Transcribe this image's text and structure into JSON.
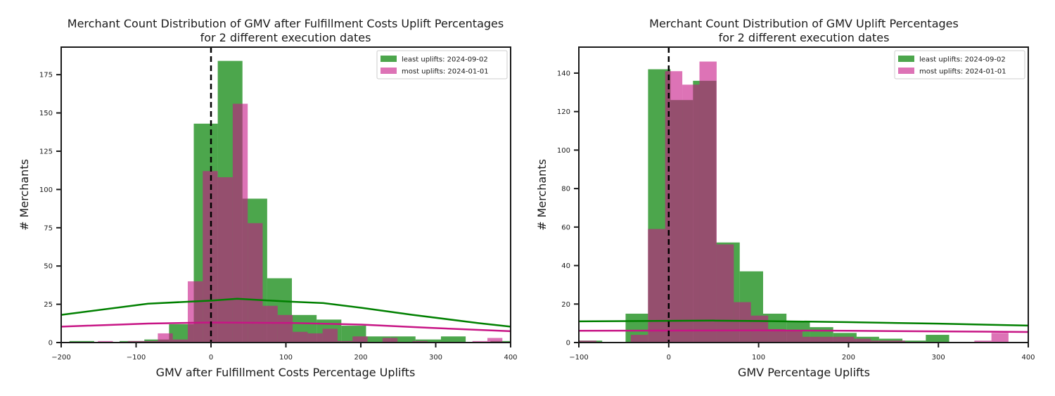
{
  "chart_data": [
    {
      "type": "histogram",
      "title": [
        "Merchant Count Distribution of GMV after Fulfillment Costs Uplift Percentages",
        "for 2 different execution dates"
      ],
      "xlabel": "GMV after Fulfillment Costs Percentage Uplifts",
      "ylabel": "# Merchants",
      "xlim": [
        -200,
        400
      ],
      "ylim": [
        0,
        193
      ],
      "xticks": [
        -200,
        -100,
        0,
        100,
        200,
        300,
        400
      ],
      "xtick_labels": [
        "−200",
        "−100",
        "0",
        "100",
        "200",
        "300",
        "400"
      ],
      "yticks": [
        0,
        25,
        50,
        75,
        100,
        125,
        150,
        175
      ],
      "ytick_labels": [
        "0",
        "25",
        "50",
        "75",
        "100",
        "125",
        "150",
        "175"
      ],
      "reference_line": {
        "x": 0,
        "style": "dashed",
        "color": "#000000"
      },
      "legend_position": "top-right",
      "series": [
        {
          "name": "least uplifts: 2024-09-02",
          "color": "#008000",
          "alpha": 0.7,
          "bin_edges": [
            -189,
            -156,
            -122,
            -89,
            -56,
            -23,
            9,
            42,
            75,
            108,
            141,
            174,
            207,
            240,
            273,
            307,
            340,
            373,
            406
          ],
          "counts": [
            1,
            0,
            1,
            2,
            12,
            143,
            184,
            94,
            42,
            18,
            15,
            11,
            4,
            4,
            2,
            4,
            0,
            1
          ],
          "kde": {
            "x": [
              -200,
              -84,
              0,
              35,
              106,
              150,
              201,
              269,
              357,
              400
            ],
            "y": [
              18.1,
              25.4,
              27.4,
              28.6,
              26.7,
              25.8,
              22.7,
              18.1,
              12.7,
              10.4
            ]
          }
        },
        {
          "name": "most uplifts: 2024-01-01",
          "color": "#c71585",
          "alpha": 0.6,
          "bin_edges": [
            -151,
            -131,
            -111,
            -91,
            -71,
            -51,
            -31,
            -11,
            9,
            29,
            49,
            69,
            89,
            109,
            129,
            149,
            169,
            189,
            209,
            229,
            249,
            269,
            289,
            309,
            329,
            349,
            369,
            389
          ],
          "counts": [
            1,
            0,
            1,
            1,
            6,
            2,
            40,
            112,
            108,
            156,
            78,
            24,
            18,
            7,
            6,
            9,
            1,
            4,
            0,
            3,
            0,
            1,
            0,
            0,
            0,
            1,
            3
          ],
          "kde": {
            "x": [
              -200,
              -84,
              0,
              106,
              201,
              288,
              400
            ],
            "y": [
              10.4,
              12.4,
              13.1,
              12.8,
              11.7,
              9.7,
              7.4
            ]
          }
        }
      ]
    },
    {
      "type": "histogram",
      "title": [
        "Merchant Count Distribution of GMV Uplift Percentages",
        "for 2 different execution dates"
      ],
      "xlabel": "GMV Percentage Uplifts",
      "ylabel": "# Merchants",
      "xlim": [
        -100,
        400
      ],
      "ylim": [
        0,
        153.5
      ],
      "xticks": [
        -100,
        0,
        100,
        200,
        300,
        400
      ],
      "xtick_labels": [
        "−100",
        "0",
        "100",
        "200",
        "300",
        "400"
      ],
      "yticks": [
        0,
        20,
        40,
        60,
        80,
        100,
        120,
        140
      ],
      "ytick_labels": [
        "0",
        "20",
        "40",
        "60",
        "80",
        "100",
        "120",
        "140"
      ],
      "reference_line": {
        "x": 0,
        "style": "dashed",
        "color": "#000000"
      },
      "legend_position": "top-right",
      "series": [
        {
          "name": "least uplifts: 2024-09-02",
          "color": "#008000",
          "alpha": 0.7,
          "bin_edges": [
            -100,
            -74,
            -48,
            -23,
            2,
            27,
            53,
            79,
            105,
            131,
            157,
            183,
            209,
            234,
            260,
            286,
            312
          ],
          "counts": [
            1,
            0,
            15,
            142,
            126,
            136,
            52,
            37,
            15,
            11,
            8,
            5,
            3,
            2,
            1,
            4
          ],
          "kde": {
            "x": [
              -100,
              0,
              50,
              100,
              200,
              300,
              400
            ],
            "y": [
              11,
              11.3,
              11.4,
              11.2,
              10.6,
              9.8,
              8.8
            ]
          }
        },
        {
          "name": "most uplifts: 2024-01-01",
          "color": "#c71585",
          "alpha": 0.6,
          "bin_edges": [
            -99.5,
            -80.5,
            -61.4,
            -42.2,
            -23.1,
            -4,
            15.1,
            34.2,
            53.3,
            72.4,
            91.5,
            110.6,
            129.7,
            148.8,
            167.9,
            187,
            206,
            225,
            244,
            263,
            283,
            302,
            321,
            340,
            359,
            378,
            397
          ],
          "counts": [
            1,
            0,
            0,
            4,
            59,
            141,
            134,
            146,
            51,
            21,
            14,
            7,
            6,
            3,
            3,
            3,
            2,
            1,
            1,
            0,
            0,
            0,
            0,
            1,
            5,
            0
          ],
          "kde": {
            "x": [
              -100,
              100,
              200,
              400
            ],
            "y": [
              6.1,
              6.3,
              6.1,
              5.5
            ]
          }
        }
      ]
    }
  ]
}
